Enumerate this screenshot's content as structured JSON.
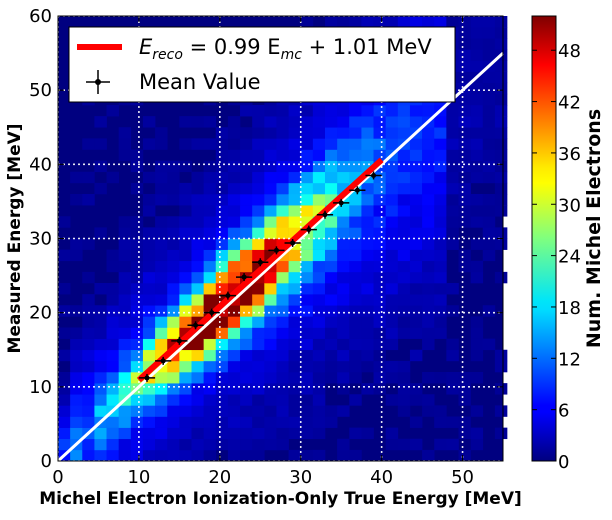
{
  "chart_data": {
    "type": "heatmap",
    "title": "",
    "xlabel": "Michel Electron Ionization-Only True Energy [MeV]",
    "ylabel": "Measured Energy [MeV]",
    "xlim": [
      0,
      55
    ],
    "ylim": [
      0,
      60
    ],
    "xticks": [
      "0",
      "10",
      "20",
      "30",
      "40",
      "50"
    ],
    "yticks": [
      "0",
      "10",
      "20",
      "30",
      "40",
      "50",
      "60"
    ],
    "grid": true,
    "colorscale": "jet",
    "colorbar": {
      "label": "Num. Michel Electrons",
      "range": [
        0,
        52
      ],
      "ticks": [
        "0",
        "6",
        "12",
        "18",
        "24",
        "30",
        "36",
        "42",
        "48"
      ]
    },
    "legend": {
      "position": "top-left",
      "entries": [
        {
          "label_prefix": "E",
          "label_sub1": "reco",
          "label_mid": " = 0.99 E",
          "label_sub2": "mc",
          "label_suffix": " + 1.01 MeV",
          "color": "#ff0000"
        },
        {
          "label": "Mean Value",
          "color": "#000000"
        }
      ]
    },
    "fit_line": {
      "slope": 0.99,
      "intercept": 1.01,
      "x_range": [
        10,
        40
      ],
      "color": "#ff0000"
    },
    "reference_line": {
      "slope": 1.0,
      "intercept": 0.0,
      "x_range": [
        0,
        55
      ],
      "color": "#ffffff"
    },
    "mean_points": [
      {
        "x": 11,
        "y": 11.2
      },
      {
        "x": 13,
        "y": 13.5
      },
      {
        "x": 15,
        "y": 16.2
      },
      {
        "x": 17,
        "y": 18.3
      },
      {
        "x": 19,
        "y": 20.0
      },
      {
        "x": 21,
        "y": 22.3
      },
      {
        "x": 23,
        "y": 24.8
      },
      {
        "x": 25,
        "y": 26.8
      },
      {
        "x": 27,
        "y": 28.4
      },
      {
        "x": 29,
        "y": 29.4
      },
      {
        "x": 31,
        "y": 31.2
      },
      {
        "x": 33,
        "y": 33.2
      },
      {
        "x": 35,
        "y": 34.8
      },
      {
        "x": 37,
        "y": 36.5
      },
      {
        "x": 39,
        "y": 38.5
      }
    ],
    "heatmap_model": {
      "bin_width": 1.5,
      "y_bins": [
        0,
        60
      ],
      "peak_count": 52,
      "band_center_slope": 0.99,
      "band_center_intercept": 1.01,
      "band_x_range": [
        9.5,
        41
      ],
      "background_level": 1.5
    }
  }
}
